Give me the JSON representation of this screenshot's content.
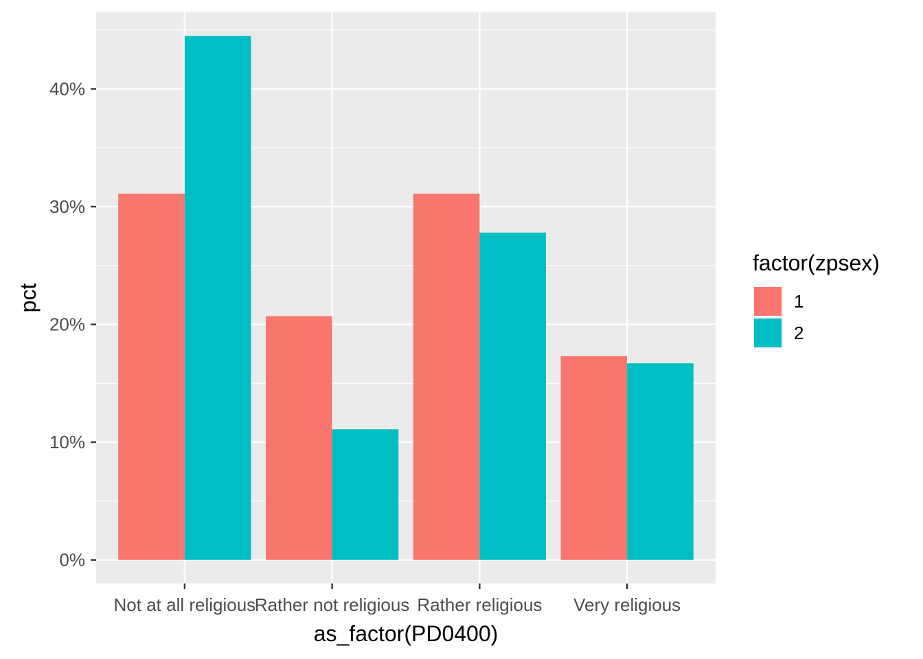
{
  "chart_data": {
    "type": "bar",
    "categories": [
      "Not at all religious",
      "Rather not religious",
      "Rather religious",
      "Very religious"
    ],
    "series": [
      {
        "name": "1",
        "color": "#F8766D",
        "values": [
          31.1,
          20.7,
          31.1,
          17.3
        ]
      },
      {
        "name": "2",
        "color": "#00BFC4",
        "values": [
          44.5,
          11.1,
          27.8,
          16.7
        ]
      }
    ],
    "xlabel": "as_factor(PD0400)",
    "ylabel": "pct",
    "ylim": [
      -2.0,
      46.5
    ],
    "yticks": [
      0,
      10,
      20,
      30,
      40
    ],
    "ytick_labels": [
      "0%",
      "10%",
      "20%",
      "30%",
      "40%"
    ],
    "legend": {
      "title": "factor(zpsex)",
      "position": "right"
    },
    "grid": true,
    "panel_background": "#EBEBEB",
    "grid_color": "#FFFFFF"
  }
}
